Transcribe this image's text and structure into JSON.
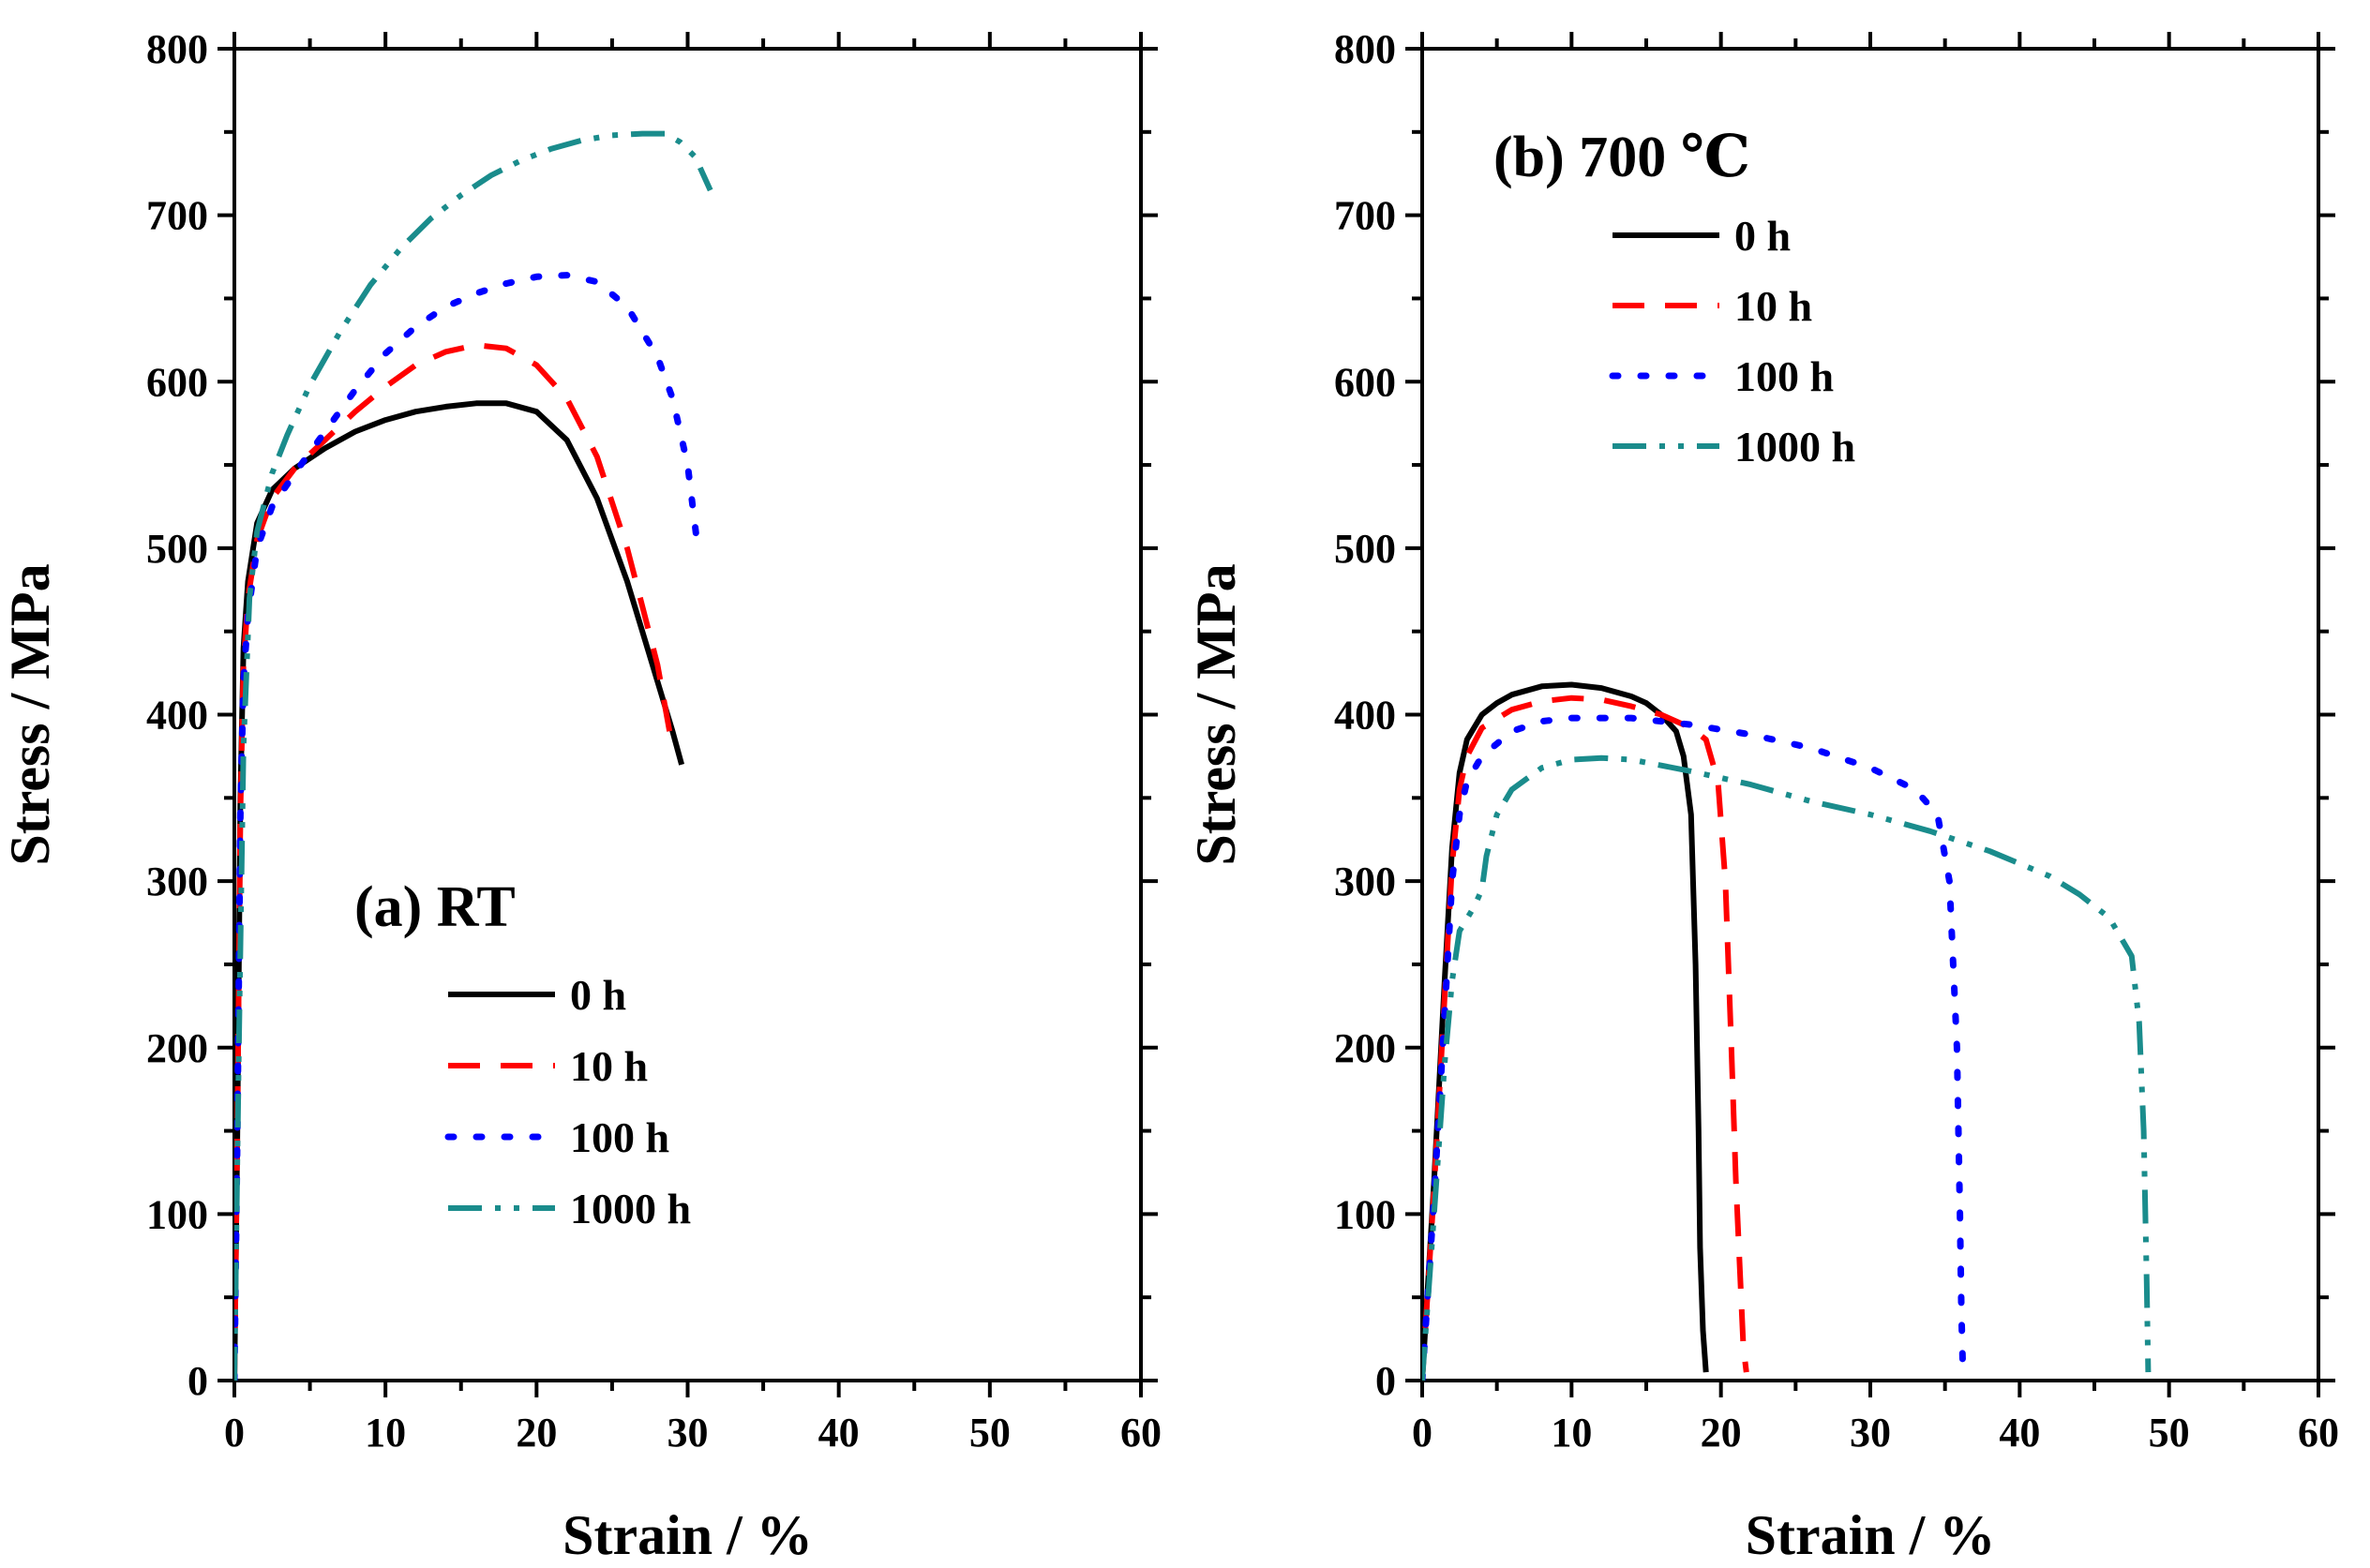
{
  "chart_data": [
    {
      "id": "a",
      "type": "line",
      "title": "(a) RT",
      "xlabel": "Strain / %",
      "ylabel": "Stress / MPa",
      "xlim": [
        0,
        60
      ],
      "ylim": [
        0,
        800
      ],
      "xticks": [
        0,
        10,
        20,
        30,
        40,
        50,
        60
      ],
      "yticks": [
        0,
        100,
        200,
        300,
        400,
        500,
        600,
        700,
        800
      ],
      "legend_position": "bottom-left",
      "series": [
        {
          "name": "0 h",
          "color": "#000000",
          "style": "solid",
          "x": [
            0,
            0.2,
            0.4,
            0.6,
            0.9,
            1.5,
            2.5,
            4,
            6,
            8,
            10,
            12,
            14,
            16,
            18,
            20,
            22,
            24,
            26,
            27,
            28,
            29,
            29.6
          ],
          "y": [
            0,
            150,
            350,
            440,
            480,
            515,
            535,
            548,
            560,
            570,
            577,
            582,
            585,
            587,
            587,
            582,
            565,
            530,
            480,
            450,
            420,
            390,
            370
          ]
        },
        {
          "name": "10 h",
          "color": "#ff0000",
          "style": "dashed",
          "x": [
            0,
            0.2,
            0.4,
            0.6,
            0.9,
            1.5,
            2.5,
            4,
            6,
            8,
            10,
            12,
            14,
            16,
            18,
            20,
            22,
            24,
            26,
            27,
            28,
            29
          ],
          "y": [
            0,
            150,
            340,
            430,
            470,
            505,
            530,
            548,
            565,
            582,
            597,
            610,
            618,
            622,
            620,
            610,
            590,
            555,
            500,
            465,
            430,
            380
          ]
        },
        {
          "name": "100 h",
          "color": "#0000ff",
          "style": "dotted",
          "x": [
            0,
            0.2,
            0.4,
            0.6,
            0.9,
            1.5,
            2.5,
            4,
            6,
            8,
            10,
            12,
            14,
            16,
            18,
            20,
            22,
            24,
            26,
            28,
            29,
            30,
            30.6
          ],
          "y": [
            0,
            150,
            340,
            420,
            460,
            500,
            525,
            545,
            570,
            595,
            617,
            633,
            645,
            653,
            659,
            663,
            664,
            660,
            645,
            615,
            590,
            550,
            505
          ]
        },
        {
          "name": "1000 h",
          "color": "#1a8c8c",
          "style": "dashdotdot",
          "x": [
            0,
            0.3,
            0.6,
            1,
            1.5,
            2.5,
            3.5,
            5,
            7,
            9,
            11,
            13,
            15,
            17,
            19,
            21,
            23,
            25,
            27,
            28.5,
            29.5,
            30.5,
            31.5
          ],
          "y": [
            0,
            200,
            380,
            470,
            510,
            545,
            568,
            598,
            630,
            658,
            680,
            698,
            712,
            724,
            733,
            740,
            745,
            748,
            749,
            749,
            744,
            735,
            715
          ]
        }
      ]
    },
    {
      "id": "b",
      "type": "line",
      "title": "(b)  700 ℃",
      "xlabel": "Strain / %",
      "ylabel": "Stress / MPa",
      "xlim": [
        0,
        60
      ],
      "ylim": [
        0,
        800
      ],
      "xticks": [
        0,
        10,
        20,
        30,
        40,
        50,
        60
      ],
      "yticks": [
        0,
        100,
        200,
        300,
        400,
        500,
        600,
        700,
        800
      ],
      "legend_position": "top-left",
      "series": [
        {
          "name": "0 h",
          "color": "#000000",
          "style": "solid",
          "x": [
            0,
            0.8,
            1.5,
            2,
            2.5,
            3,
            4,
            5,
            6,
            8,
            10,
            12,
            14,
            15,
            16,
            17,
            17.5,
            18,
            18.3,
            18.5,
            18.6,
            18.8,
            19
          ],
          "y": [
            0,
            120,
            240,
            320,
            365,
            385,
            400,
            407,
            412,
            417,
            418,
            416,
            411,
            407,
            400,
            390,
            375,
            340,
            250,
            150,
            80,
            30,
            5
          ]
        },
        {
          "name": "10 h",
          "color": "#ff0000",
          "style": "dashed",
          "x": [
            0,
            0.8,
            1.5,
            2,
            2.5,
            3,
            4,
            6,
            8,
            10,
            12,
            14,
            16,
            18,
            19,
            19.8,
            20.3,
            20.7,
            21,
            21.3,
            21.5,
            21.7
          ],
          "y": [
            0,
            115,
            230,
            310,
            355,
            375,
            392,
            403,
            408,
            410,
            409,
            405,
            400,
            392,
            385,
            360,
            300,
            200,
            120,
            60,
            20,
            5
          ]
        },
        {
          "name": "100 h",
          "color": "#0000ff",
          "style": "dotted",
          "x": [
            0,
            0.8,
            1.5,
            2,
            2.5,
            3,
            4,
            6,
            8,
            10,
            14,
            18,
            22,
            26,
            30,
            33,
            34.5,
            35.3,
            35.8,
            36,
            36.1,
            36.2
          ],
          "y": [
            0,
            110,
            220,
            300,
            340,
            360,
            375,
            390,
            396,
            398,
            398,
            394,
            388,
            380,
            368,
            355,
            340,
            300,
            200,
            100,
            40,
            5
          ]
        },
        {
          "name": "1000 h",
          "color": "#1a8c8c",
          "style": "dashdotdot",
          "x": [
            0,
            0.8,
            1.5,
            2,
            2.5,
            3.5,
            4,
            4.3,
            5,
            6,
            8,
            10,
            12,
            14,
            18,
            22,
            26,
            30,
            34,
            38,
            42,
            44,
            46,
            47.5,
            48,
            48.3,
            48.5,
            48.6
          ],
          "y": [
            0,
            100,
            190,
            240,
            270,
            285,
            295,
            315,
            340,
            355,
            368,
            373,
            374,
            373,
            366,
            358,
            348,
            340,
            330,
            318,
            303,
            292,
            278,
            255,
            215,
            150,
            60,
            5
          ]
        }
      ]
    }
  ]
}
